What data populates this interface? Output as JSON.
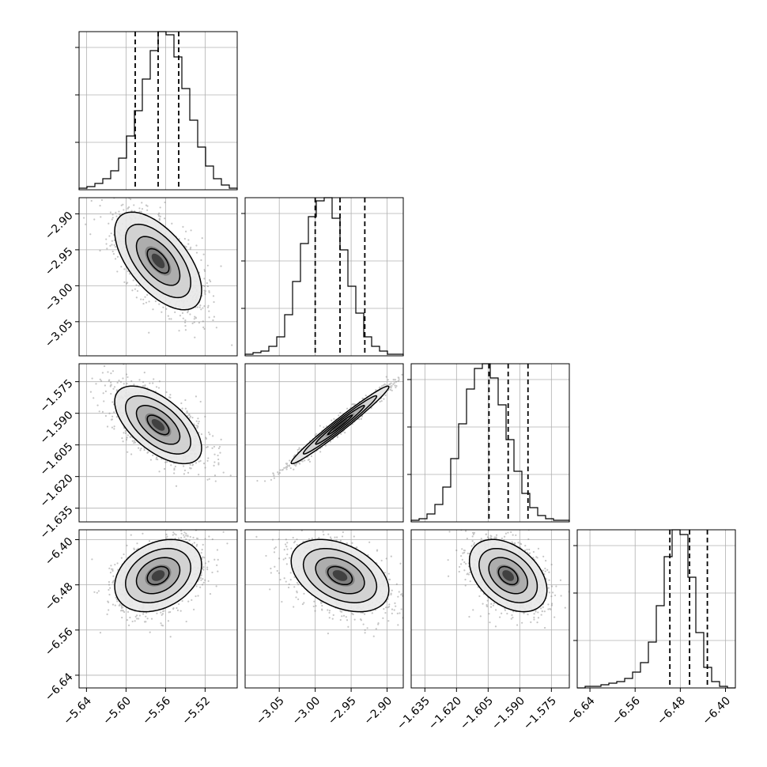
{
  "chart_data": {
    "type": "corner",
    "grid": true,
    "parameters": [
      {
        "index": 0,
        "range": [
          -5.6475,
          -5.4875
        ],
        "ticks": [
          -5.64,
          -5.6,
          -5.56,
          -5.52
        ],
        "tick_labels": [
          "−5.64",
          "−5.60",
          "−5.56",
          "−5.52"
        ],
        "quantiles": [
          -5.5907,
          -5.5675,
          -5.5467
        ],
        "mean": -5.5675,
        "sd": 0.022
      },
      {
        "index": 1,
        "range": [
          -3.0975,
          -2.8775
        ],
        "ticks": [
          -3.05,
          -3.0,
          -2.95,
          -2.9
        ],
        "tick_labels": [
          "−3.05",
          "−3.00",
          "−2.95",
          "−2.90"
        ],
        "quantiles": [
          -3.0,
          -2.9655,
          -2.931
        ],
        "mean": -2.9655,
        "sd": 0.034
      },
      {
        "index": 2,
        "range": [
          -1.6415,
          -1.5665
        ],
        "ticks": [
          -1.635,
          -1.62,
          -1.605,
          -1.59,
          -1.575
        ],
        "tick_labels": [
          "−1.635",
          "−1.620",
          "−1.605",
          "−1.590",
          "−1.575"
        ],
        "quantiles": [
          -1.6046,
          -1.5955,
          -1.5861
        ],
        "mean": -1.5955,
        "sd": 0.0092
      },
      {
        "index": 3,
        "range": [
          -6.6625,
          -6.3825
        ],
        "ticks": [
          -6.64,
          -6.56,
          -6.48,
          -6.4
        ],
        "tick_labels": [
          "−6.64",
          "−6.56",
          "−6.48",
          "−6.40"
        ],
        "quantiles": [
          -6.4985,
          -6.4636,
          -6.4321
        ],
        "mean": -6.4636,
        "sd": 0.032,
        "skew": "left"
      }
    ],
    "correlations": {
      "1-0": -0.6,
      "2-0": -0.6,
      "2-1": 0.98,
      "3-0": 0.3,
      "3-1": -0.4,
      "3-2": -0.4
    },
    "histograms": [
      {
        "param": 0,
        "bins": 20,
        "counts": [
          1,
          2,
          4,
          7,
          12,
          20,
          34,
          50,
          70,
          88,
          100,
          98,
          84,
          64,
          44,
          27,
          15,
          7,
          3,
          1
        ]
      },
      {
        "param": 1,
        "bins": 20,
        "counts": [
          1,
          2,
          3,
          6,
          12,
          26,
          47,
          71,
          88,
          98,
          100,
          87,
          67,
          44,
          27,
          12,
          6,
          3,
          1,
          1
        ]
      },
      {
        "param": 2,
        "bins": 20,
        "counts": [
          1,
          2,
          5,
          11,
          22,
          40,
          62,
          84,
          97,
          100,
          91,
          74,
          52,
          32,
          18,
          9,
          4,
          2,
          1,
          1
        ]
      },
      {
        "param": 3,
        "bins": 20,
        "counts": [
          0,
          1,
          1,
          2,
          3,
          4,
          6,
          10,
          16,
          29,
          52,
          83,
          100,
          97,
          70,
          35,
          13,
          4,
          1,
          0
        ]
      }
    ]
  }
}
